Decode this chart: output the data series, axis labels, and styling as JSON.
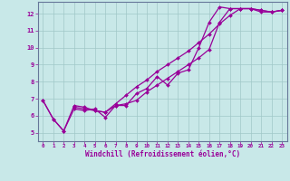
{
  "xlabel": "Windchill (Refroidissement éolien,°C)",
  "bg_color": "#c8e8e8",
  "grid_color": "#a0c8c8",
  "line_color": "#990099",
  "spine_color": "#667799",
  "xlim": [
    -0.5,
    23.5
  ],
  "ylim": [
    4.5,
    12.7
  ],
  "xticks": [
    0,
    1,
    2,
    3,
    4,
    5,
    6,
    7,
    8,
    9,
    10,
    11,
    12,
    13,
    14,
    15,
    16,
    17,
    18,
    19,
    20,
    21,
    22,
    23
  ],
  "yticks": [
    5,
    6,
    7,
    8,
    9,
    10,
    11,
    12
  ],
  "line1_x": [
    0,
    1,
    2,
    3,
    4,
    5,
    6,
    7,
    8,
    9,
    10,
    11,
    12,
    13,
    14,
    15,
    16,
    17,
    18,
    19,
    20,
    21,
    22,
    23
  ],
  "line1_y": [
    6.9,
    5.8,
    5.1,
    6.4,
    6.3,
    6.4,
    5.9,
    6.6,
    6.6,
    7.3,
    7.6,
    8.3,
    7.8,
    8.5,
    8.7,
    10.0,
    11.5,
    12.4,
    12.3,
    12.3,
    12.3,
    12.1,
    12.1,
    12.2
  ],
  "line2_x": [
    0,
    1,
    2,
    3,
    4,
    5,
    6,
    7,
    8,
    9,
    10,
    11,
    12,
    13,
    14,
    15,
    16,
    17,
    18,
    19,
    20,
    21,
    22,
    23
  ],
  "line2_y": [
    6.9,
    5.8,
    5.1,
    6.6,
    6.5,
    6.3,
    6.2,
    6.7,
    7.2,
    7.7,
    8.1,
    8.6,
    9.0,
    9.4,
    9.8,
    10.3,
    10.8,
    11.4,
    11.9,
    12.3,
    12.3,
    12.2,
    12.1,
    12.2
  ],
  "line3_x": [
    3,
    4,
    5,
    6,
    7,
    8,
    9,
    10,
    11,
    12,
    13,
    14,
    15,
    16,
    17,
    18,
    19,
    20,
    21,
    22,
    23
  ],
  "line3_y": [
    6.5,
    6.4,
    6.3,
    6.2,
    6.6,
    6.7,
    6.9,
    7.4,
    7.8,
    8.2,
    8.6,
    9.0,
    9.4,
    9.9,
    11.5,
    12.3,
    12.3,
    12.3,
    12.2,
    12.1,
    12.2
  ]
}
